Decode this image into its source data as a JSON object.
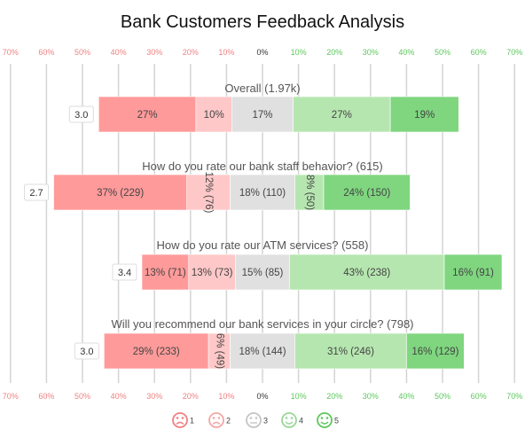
{
  "chart_data": {
    "type": "bar",
    "subtype": "diverging-stacked-bar",
    "title": "Bank Customers Feedback Analysis",
    "x_ticks": [
      "70%",
      "60%",
      "50%",
      "40%",
      "30%",
      "20%",
      "10%",
      "0%",
      "10%",
      "20%",
      "30%",
      "40%",
      "50%",
      "60%",
      "70%"
    ],
    "xlim": [
      -70,
      70
    ],
    "grid": true,
    "legend_position": "bottom",
    "legend": [
      {
        "label": "1",
        "color": "#f08080",
        "face": "sad"
      },
      {
        "label": "2",
        "color": "#f4a6a6",
        "face": "sad"
      },
      {
        "label": "3",
        "color": "#c4c4c4",
        "face": "neutral"
      },
      {
        "label": "4",
        "color": "#98d898",
        "face": "happy"
      },
      {
        "label": "5",
        "color": "#5cc85c",
        "face": "happy"
      }
    ],
    "colors": [
      "#ff9a9a",
      "#ffc8c8",
      "#e0e0e0",
      "#b6e6b0",
      "#7fd67f"
    ],
    "rows": [
      {
        "question": "Overall (1.97k)",
        "average": "3.0",
        "values": [
          27,
          10,
          17,
          27,
          19
        ],
        "labels": [
          "27%",
          "10%",
          "17%",
          "27%",
          "19%"
        ],
        "vertical": [
          false,
          false,
          false,
          false,
          false
        ]
      },
      {
        "question": "How do you rate our bank staff behavior? (615)",
        "average": "2.7",
        "values": [
          37,
          12,
          18,
          8,
          24
        ],
        "labels": [
          "37% (229)",
          "12% (76)",
          "18% (110)",
          "8% (50)",
          "24% (150)"
        ],
        "vertical": [
          false,
          true,
          false,
          true,
          false
        ]
      },
      {
        "question": "How do you rate our ATM services? (558)",
        "average": "3.4",
        "values": [
          13,
          13,
          15,
          43,
          16
        ],
        "labels": [
          "13% (71)",
          "13% (73)",
          "15% (85)",
          "43% (238)",
          "16% (91)"
        ],
        "vertical": [
          false,
          false,
          false,
          false,
          false
        ]
      },
      {
        "question": "Will you recommend our bank services in your circle? (798)",
        "average": "3.0",
        "values": [
          29,
          6,
          18,
          31,
          16
        ],
        "labels": [
          "29% (233)",
          "6% (49)",
          "18% (144)",
          "31% (246)",
          "16% (129)"
        ],
        "vertical": [
          false,
          true,
          false,
          false,
          false
        ]
      }
    ]
  }
}
